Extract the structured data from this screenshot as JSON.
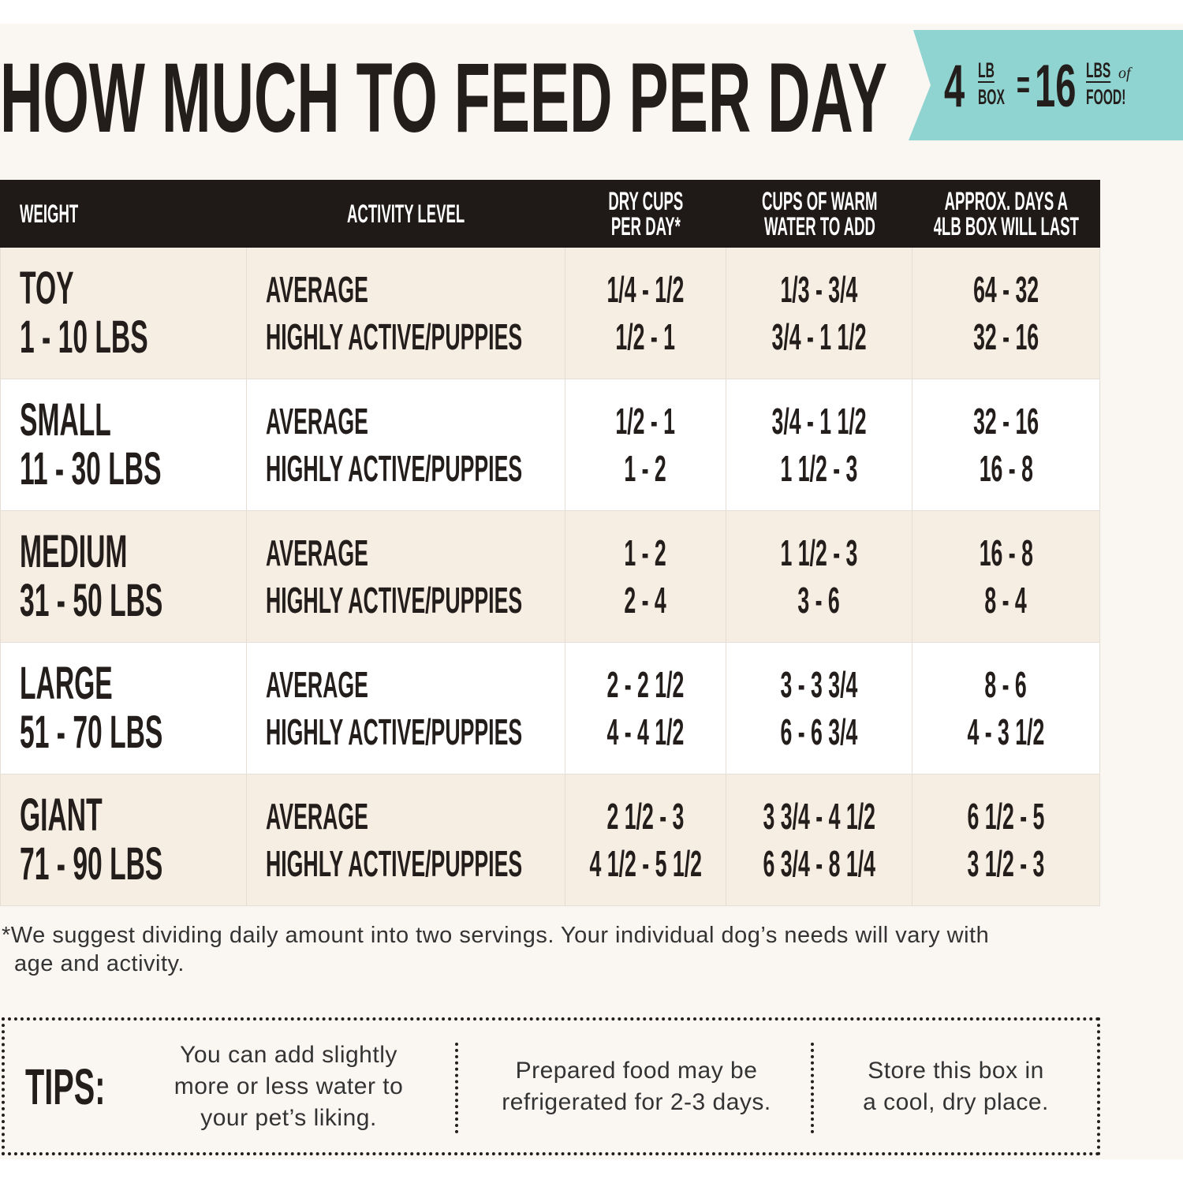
{
  "header": {
    "title": "HOW MUCH TO FEED PER DAY",
    "badge": {
      "box_lbs": "4",
      "box_unit_top": "LB",
      "box_unit_bottom": "BOX",
      "equals": "=",
      "food_lbs": "16",
      "food_unit_top": "LBS",
      "food_unit_of": "of",
      "food_unit_bottom": "FOOD!"
    }
  },
  "table": {
    "columns": [
      [
        "WEIGHT"
      ],
      [
        "ACTIVITY LEVEL"
      ],
      [
        "DRY CUPS",
        "PER DAY*"
      ],
      [
        "CUPS OF WARM",
        "WATER TO ADD"
      ],
      [
        "APPROX. DAYS A",
        "4LB BOX WILL LAST"
      ]
    ],
    "rows": [
      {
        "size": "TOY",
        "weight": "1 - 10 LBS",
        "activity": [
          "AVERAGE",
          "HIGHLY ACTIVE/PUPPIES"
        ],
        "dry_cups": [
          "1/4 - 1/2",
          "1/2 - 1"
        ],
        "water": [
          "1/3 - 3/4",
          "3/4 - 1 1/2"
        ],
        "days": [
          "64 - 32",
          "32 - 16"
        ]
      },
      {
        "size": "SMALL",
        "weight": "11 - 30 LBS",
        "activity": [
          "AVERAGE",
          "HIGHLY ACTIVE/PUPPIES"
        ],
        "dry_cups": [
          "1/2 - 1",
          "1 - 2"
        ],
        "water": [
          "3/4 - 1 1/2",
          "1 1/2 - 3"
        ],
        "days": [
          "32 - 16",
          "16 - 8"
        ]
      },
      {
        "size": "MEDIUM",
        "weight": "31 - 50 LBS",
        "activity": [
          "AVERAGE",
          "HIGHLY ACTIVE/PUPPIES"
        ],
        "dry_cups": [
          "1 - 2",
          "2 - 4"
        ],
        "water": [
          "1 1/2 - 3",
          "3 - 6"
        ],
        "days": [
          "16 - 8",
          "8 - 4"
        ]
      },
      {
        "size": "LARGE",
        "weight": "51 - 70 LBS",
        "activity": [
          "AVERAGE",
          "HIGHLY ACTIVE/PUPPIES"
        ],
        "dry_cups": [
          "2 - 2 1/2",
          "4 - 4 1/2"
        ],
        "water": [
          "3 - 3 3/4",
          "6 - 6 3/4"
        ],
        "days": [
          "8 - 6",
          "4 - 3 1/2"
        ]
      },
      {
        "size": "GIANT",
        "weight": "71 - 90 LBS",
        "activity": [
          "AVERAGE",
          "HIGHLY ACTIVE/PUPPIES"
        ],
        "dry_cups": [
          "2 1/2 - 3",
          "4 1/2 - 5 1/2"
        ],
        "water": [
          "3 3/4 - 4 1/2",
          "6 3/4 - 8 1/4"
        ],
        "days": [
          "6 1/2 - 5",
          "3 1/2 - 3"
        ]
      }
    ]
  },
  "footnote": "*We suggest dividing daily amount into two servings. Your individual dog’s needs will vary with age and activity.",
  "tips": {
    "label": "TIPS:",
    "items": [
      [
        "You can add slightly",
        "more or less water to",
        "your pet’s liking."
      ],
      [
        "Prepared food may be",
        "refrigerated for 2-3 days."
      ],
      [
        "Store this box in",
        "a cool, dry place."
      ]
    ]
  }
}
